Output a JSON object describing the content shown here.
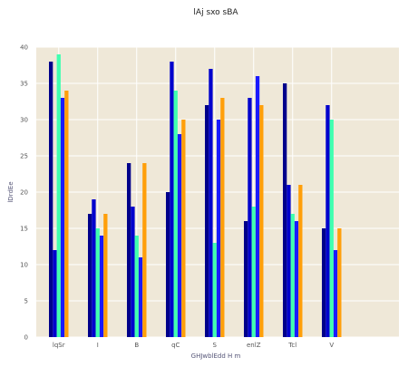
{
  "chart_data": {
    "type": "bar",
    "title": "lAj sxo sBA",
    "xlabel": "GHJwblEdd H m",
    "ylabel": "lDrdEe",
    "categories": [
      "lqSr",
      "I",
      "B",
      "qC",
      "S",
      "enlZ",
      "Tcl",
      "V"
    ],
    "ylim": [
      0,
      40
    ],
    "yticks": [
      0,
      5,
      10,
      15,
      20,
      25,
      30,
      35,
      40
    ],
    "grid": true,
    "legend": "none",
    "background_color": "#efe8d8",
    "series": [
      {
        "color": "#00008b",
        "values": [
          38,
          17,
          24,
          20,
          32,
          16,
          35,
          15
        ]
      },
      {
        "color": "#0000cd",
        "values": [
          12,
          19,
          18,
          38,
          37,
          33,
          21,
          32
        ]
      },
      {
        "color": "#40ffb0",
        "values": [
          39,
          15,
          14,
          34,
          13,
          18,
          17,
          30
        ]
      },
      {
        "color": "#1a1aff",
        "values": [
          33,
          14,
          11,
          28,
          30,
          36,
          16,
          12
        ]
      },
      {
        "color": "#ff9f0a",
        "values": [
          34,
          17,
          24,
          30,
          33,
          32,
          21,
          15
        ]
      }
    ]
  }
}
